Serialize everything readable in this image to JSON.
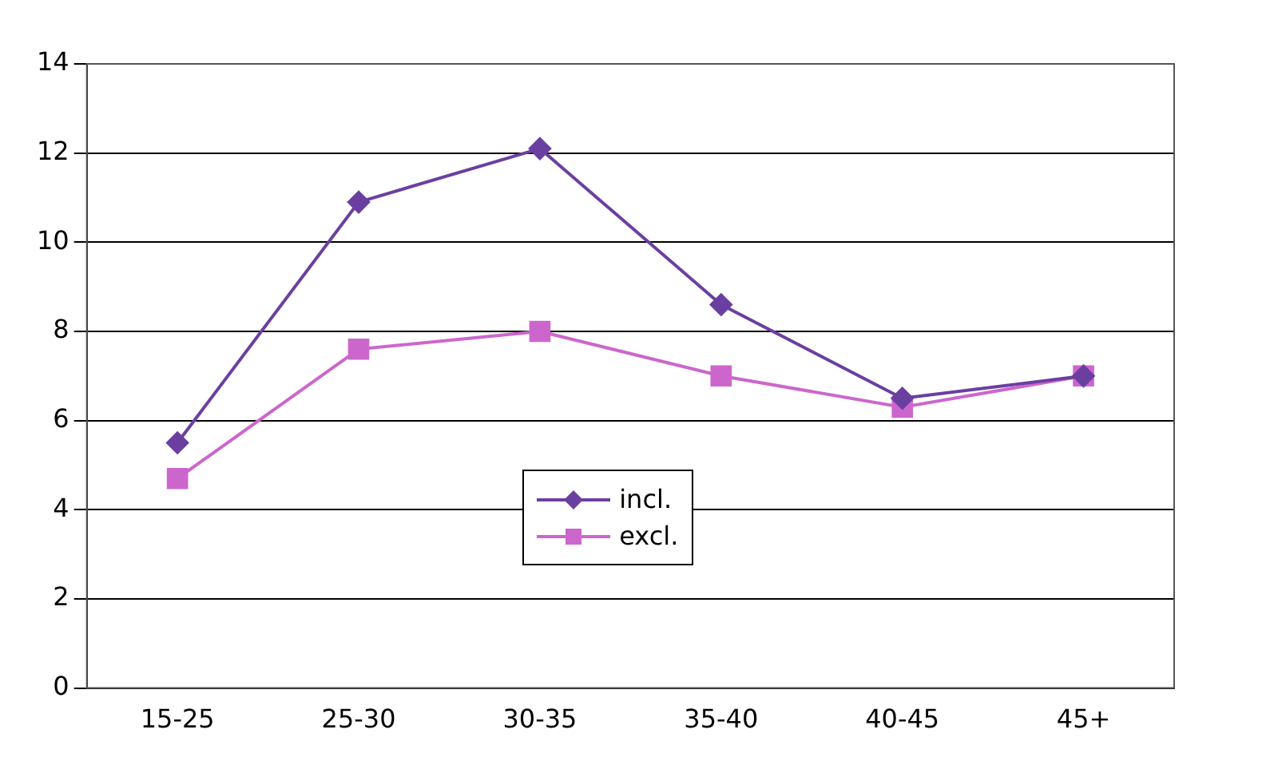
{
  "chart_data": {
    "type": "line",
    "categories": [
      "15-25",
      "25-30",
      "30-35",
      "35-40",
      "40-45",
      "45+"
    ],
    "series": [
      {
        "name": "incl.",
        "color": "#6b3fa0",
        "marker": "diamond",
        "values": [
          5.5,
          10.9,
          12.1,
          8.6,
          6.5,
          7.0
        ]
      },
      {
        "name": "excl.",
        "color": "#cc66cc",
        "marker": "square",
        "values": [
          4.7,
          7.6,
          8.0,
          7.0,
          6.3,
          7.0
        ]
      }
    ],
    "ylim": [
      0,
      14
    ],
    "yticks": [
      0,
      2,
      4,
      6,
      8,
      10,
      12,
      14
    ],
    "grid": "y",
    "legend": "center"
  }
}
